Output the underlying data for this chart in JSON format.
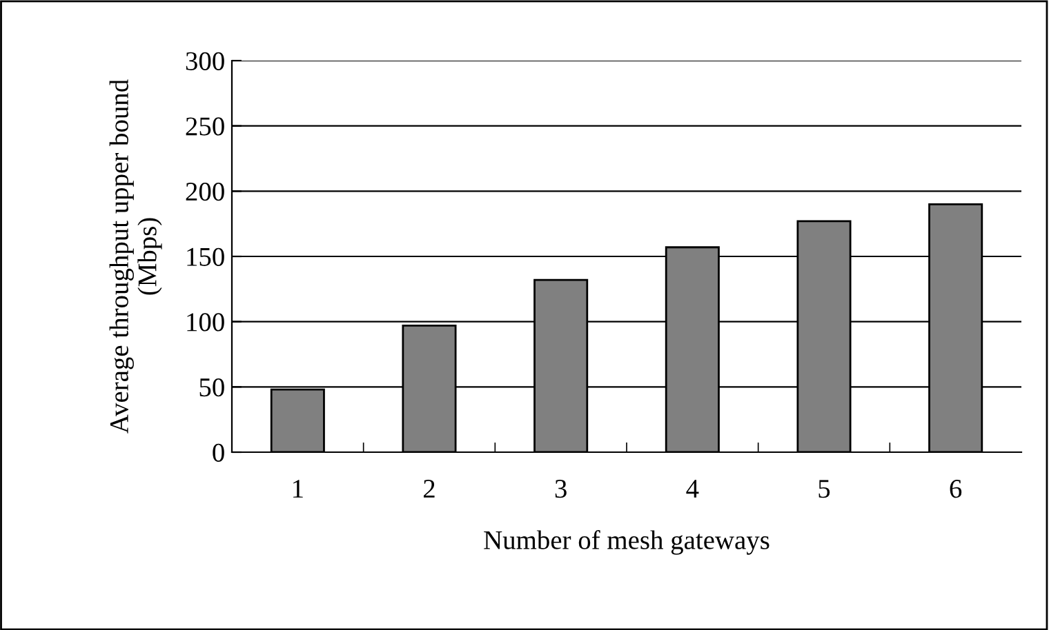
{
  "chart_data": {
    "type": "bar",
    "xlabel": "Number of mesh gateways",
    "ylabel": "Average throughput upper bound\n(Mbps)",
    "categories": [
      "1",
      "2",
      "3",
      "4",
      "5",
      "6"
    ],
    "values": [
      48,
      97,
      132,
      157,
      177,
      190
    ],
    "color": "#808080",
    "ylim": [
      0,
      300
    ],
    "yticks": [
      0,
      50,
      100,
      150,
      200,
      250,
      300
    ],
    "grid": "y"
  }
}
